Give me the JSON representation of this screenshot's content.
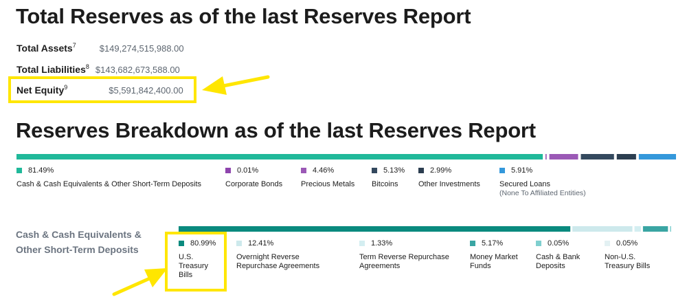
{
  "total_reserves": {
    "title": "Total Reserves as of the last Reserves Report",
    "rows": [
      {
        "label": "Total Assets",
        "note": "7",
        "value": "$149,274,515,988.00"
      },
      {
        "label": "Total Liabilities",
        "note": "8",
        "value": "$143,682,673,588.00"
      },
      {
        "label": "Net Equity",
        "note": "9",
        "value": "$5,591,842,400.00"
      }
    ]
  },
  "breakdown": {
    "title": "Reserves Breakdown as of the last Reserves Report"
  },
  "cash_section": {
    "label": "Cash & Cash Equivalents &\nOther Short-Term Deposits"
  },
  "colors": {
    "highlight": "#ffe600"
  },
  "chart_data": [
    {
      "type": "bar",
      "orientation": "stacked-horizontal",
      "categories": [
        "Cash & Cash Equivalents & Other Short-Term Deposits",
        "Corporate Bonds",
        "Precious Metals",
        "Bitcoins",
        "Other Investments",
        "Secured Loans"
      ],
      "values": [
        81.49,
        0.01,
        4.46,
        5.13,
        2.99,
        5.91
      ],
      "labels": [
        "81.49%",
        "0.01%",
        "4.46%",
        "5.13%",
        "2.99%",
        "5.91%"
      ],
      "sublabels": [
        "",
        "",
        "",
        "",
        "",
        "(None To Affiliated Entities)"
      ],
      "colors": [
        "#20b99a",
        "#8e44ad",
        "#9b59b6",
        "#34495e",
        "#2c3e50",
        "#3498db"
      ],
      "unit": "%"
    },
    {
      "type": "bar",
      "orientation": "stacked-horizontal",
      "categories": [
        "U.S.\nTreasury\nBills",
        "Overnight Reverse\nRepurchase Agreements",
        "Term Reverse Repurchase\nAgreements",
        "Money Market\nFunds",
        "Cash & Bank\nDeposits",
        "Non-U.S.\nTreasury Bills"
      ],
      "values": [
        80.99,
        12.41,
        1.33,
        5.17,
        0.05,
        0.05
      ],
      "labels": [
        "80.99%",
        "12.41%",
        "1.33%",
        "5.17%",
        "0.05%",
        "0.05%"
      ],
      "colors": [
        "#0a8a7e",
        "#cde9ec",
        "#d4eef1",
        "#3aa5a3",
        "#7fcfcf",
        "#e3f1f3"
      ],
      "unit": "%"
    }
  ]
}
